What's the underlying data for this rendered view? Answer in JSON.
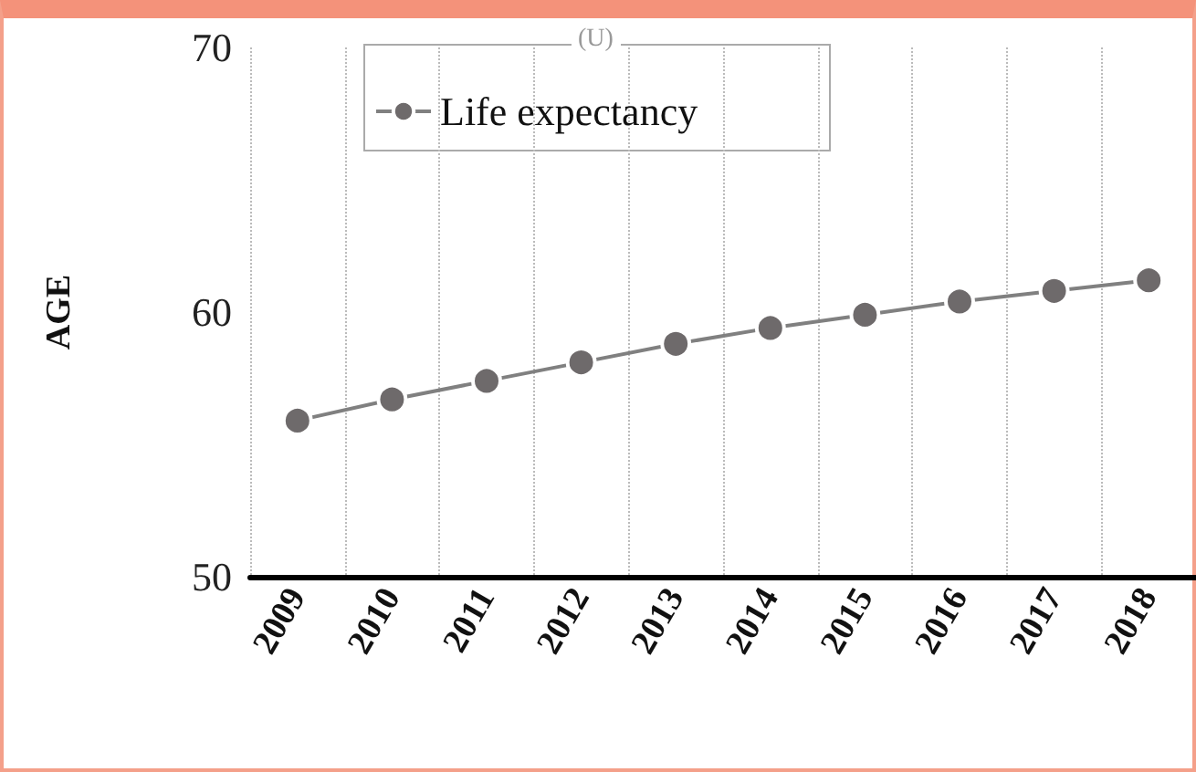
{
  "chart_data": {
    "type": "line",
    "ylabel": "AGE",
    "legend_title": "(U)",
    "categories": [
      "2009",
      "2010",
      "2011",
      "2012",
      "2013",
      "2014",
      "2015",
      "2016",
      "2017",
      "2018"
    ],
    "series": [
      {
        "name": "Life expectancy",
        "color": "#808080",
        "values": [
          55.9,
          56.7,
          57.4,
          58.1,
          58.8,
          59.4,
          59.9,
          60.4,
          60.8,
          61.2
        ]
      }
    ],
    "ylim": [
      50,
      70
    ],
    "yticks": [
      50,
      60,
      70
    ],
    "grid": "x",
    "legend": "top left",
    "marker": "circle",
    "line_style": "solid"
  }
}
